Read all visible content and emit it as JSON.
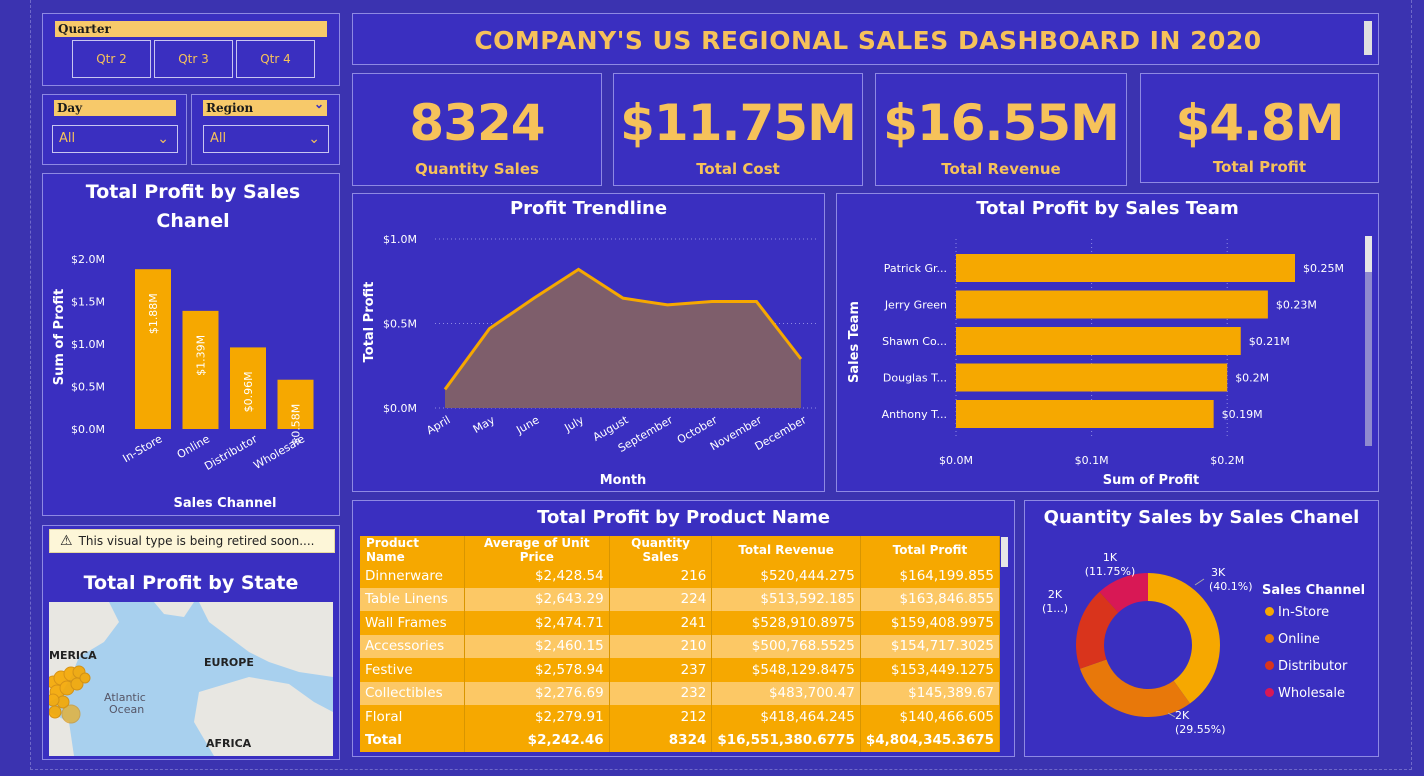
{
  "slicers": {
    "quarter": {
      "title": "Quarter",
      "options": [
        "Qtr 2",
        "Qtr 3",
        "Qtr 4"
      ]
    },
    "day": {
      "title": "Day",
      "value": "All"
    },
    "region": {
      "title": "Region",
      "value": "All"
    }
  },
  "header": {
    "title": "COMPANY'S US REGIONAL SALES DASHBOARD IN 2020"
  },
  "kpis": [
    {
      "value": "8324",
      "label": "Quantity Sales"
    },
    {
      "value": "$11.75M",
      "label": "Total Cost"
    },
    {
      "value": "$16.55M",
      "label": "Total Revenue"
    },
    {
      "value": "$4.8M",
      "label": "Total Profit"
    }
  ],
  "warning": {
    "text": "This visual type is being retired soon...."
  },
  "map": {
    "title": "Total Profit by State",
    "labels": [
      "MERICA",
      "EUROPE",
      "Atlantic",
      "Ocean",
      "AFRICA"
    ]
  },
  "colors": {
    "accent": "#f6a800",
    "title_gold": "#f6c25a",
    "background": "#3a2fc0",
    "in_store": "#f6a800",
    "online": "#e8780a",
    "distributor": "#d9341c",
    "wholesale": "#d81855",
    "area_fill": "#7e5e6b"
  },
  "chart_data": [
    {
      "type": "bar",
      "title": "Total Profit by Sales Chanel",
      "xlabel": "Sales Channel",
      "ylabel": "Sum of Profit",
      "categories": [
        "In-Store",
        "Online",
        "Distributor",
        "Wholesale"
      ],
      "values": [
        1.88,
        1.39,
        0.96,
        0.58
      ],
      "data_labels": [
        "$1.88M",
        "$1.39M",
        "$0.96M",
        "$0.58M"
      ],
      "ylim": [
        0,
        2.0
      ],
      "yticks": [
        "$0.0M",
        "$0.5M",
        "$1.0M",
        "$1.5M",
        "$2.0M"
      ]
    },
    {
      "type": "area",
      "title": "Profit Trendline",
      "xlabel": "Month",
      "ylabel": "Total Profit",
      "x": [
        "April",
        "May",
        "June",
        "July",
        "August",
        "September",
        "October",
        "November",
        "December"
      ],
      "values": [
        0.11,
        0.47,
        0.65,
        0.82,
        0.65,
        0.61,
        0.63,
        0.63,
        0.29
      ],
      "ylim": [
        0,
        1.0
      ],
      "yticks": [
        "$0.0M",
        "$0.5M",
        "$1.0M"
      ]
    },
    {
      "type": "bar",
      "orientation": "horizontal",
      "title": "Total Profit by Sales Team",
      "xlabel": "Sum of Profit",
      "ylabel": "Sales Team",
      "categories": [
        "Patrick Gr...",
        "Jerry Green",
        "Shawn Co...",
        "Douglas T...",
        "Anthony T..."
      ],
      "values": [
        0.25,
        0.23,
        0.21,
        0.2,
        0.19
      ],
      "data_labels": [
        "$0.25M",
        "$0.23M",
        "$0.21M",
        "$0.2M",
        "$0.19M"
      ],
      "xlim": [
        0,
        0.25
      ],
      "xticks": [
        "$0.0M",
        "$0.1M",
        "$0.2M"
      ]
    },
    {
      "type": "table",
      "title": "Total Profit by Product Name",
      "columns": [
        "Product Name",
        "Average of Unit Price",
        "Quantity Sales",
        "Total Revenue",
        "Total Profit"
      ],
      "rows": [
        [
          "Dinnerware",
          "$2,428.54",
          "216",
          "$520,444.275",
          "$164,199.855"
        ],
        [
          "Table Linens",
          "$2,643.29",
          "224",
          "$513,592.185",
          "$163,846.855"
        ],
        [
          "Wall Frames",
          "$2,474.71",
          "241",
          "$528,910.8975",
          "$159,408.9975"
        ],
        [
          "Accessories",
          "$2,460.15",
          "210",
          "$500,768.5525",
          "$154,717.3025"
        ],
        [
          "Festive",
          "$2,578.94",
          "237",
          "$548,129.8475",
          "$153,449.1275"
        ],
        [
          "Collectibles",
          "$2,276.69",
          "232",
          "$483,700.47",
          "$145,389.67"
        ],
        [
          "Floral",
          "$2,279.91",
          "212",
          "$418,464.245",
          "$140,466.605"
        ]
      ],
      "total": [
        "Total",
        "$2,242.46",
        "8324",
        "$16,551,380.6775",
        "$4,804,345.3675"
      ]
    },
    {
      "type": "pie",
      "title": "Quantity Sales by Sales Chanel",
      "legend_title": "Sales Channel",
      "labels": [
        "In-Store",
        "Online",
        "Distributor",
        "Wholesale"
      ],
      "values": [
        40.1,
        29.55,
        18.6,
        11.75
      ],
      "data_labels": [
        [
          "3K",
          "(40.1%)"
        ],
        [
          "2K",
          "(29.55%)"
        ],
        [
          "2K",
          "(1...)"
        ],
        [
          "1K",
          "(11.75%)"
        ]
      ]
    }
  ]
}
